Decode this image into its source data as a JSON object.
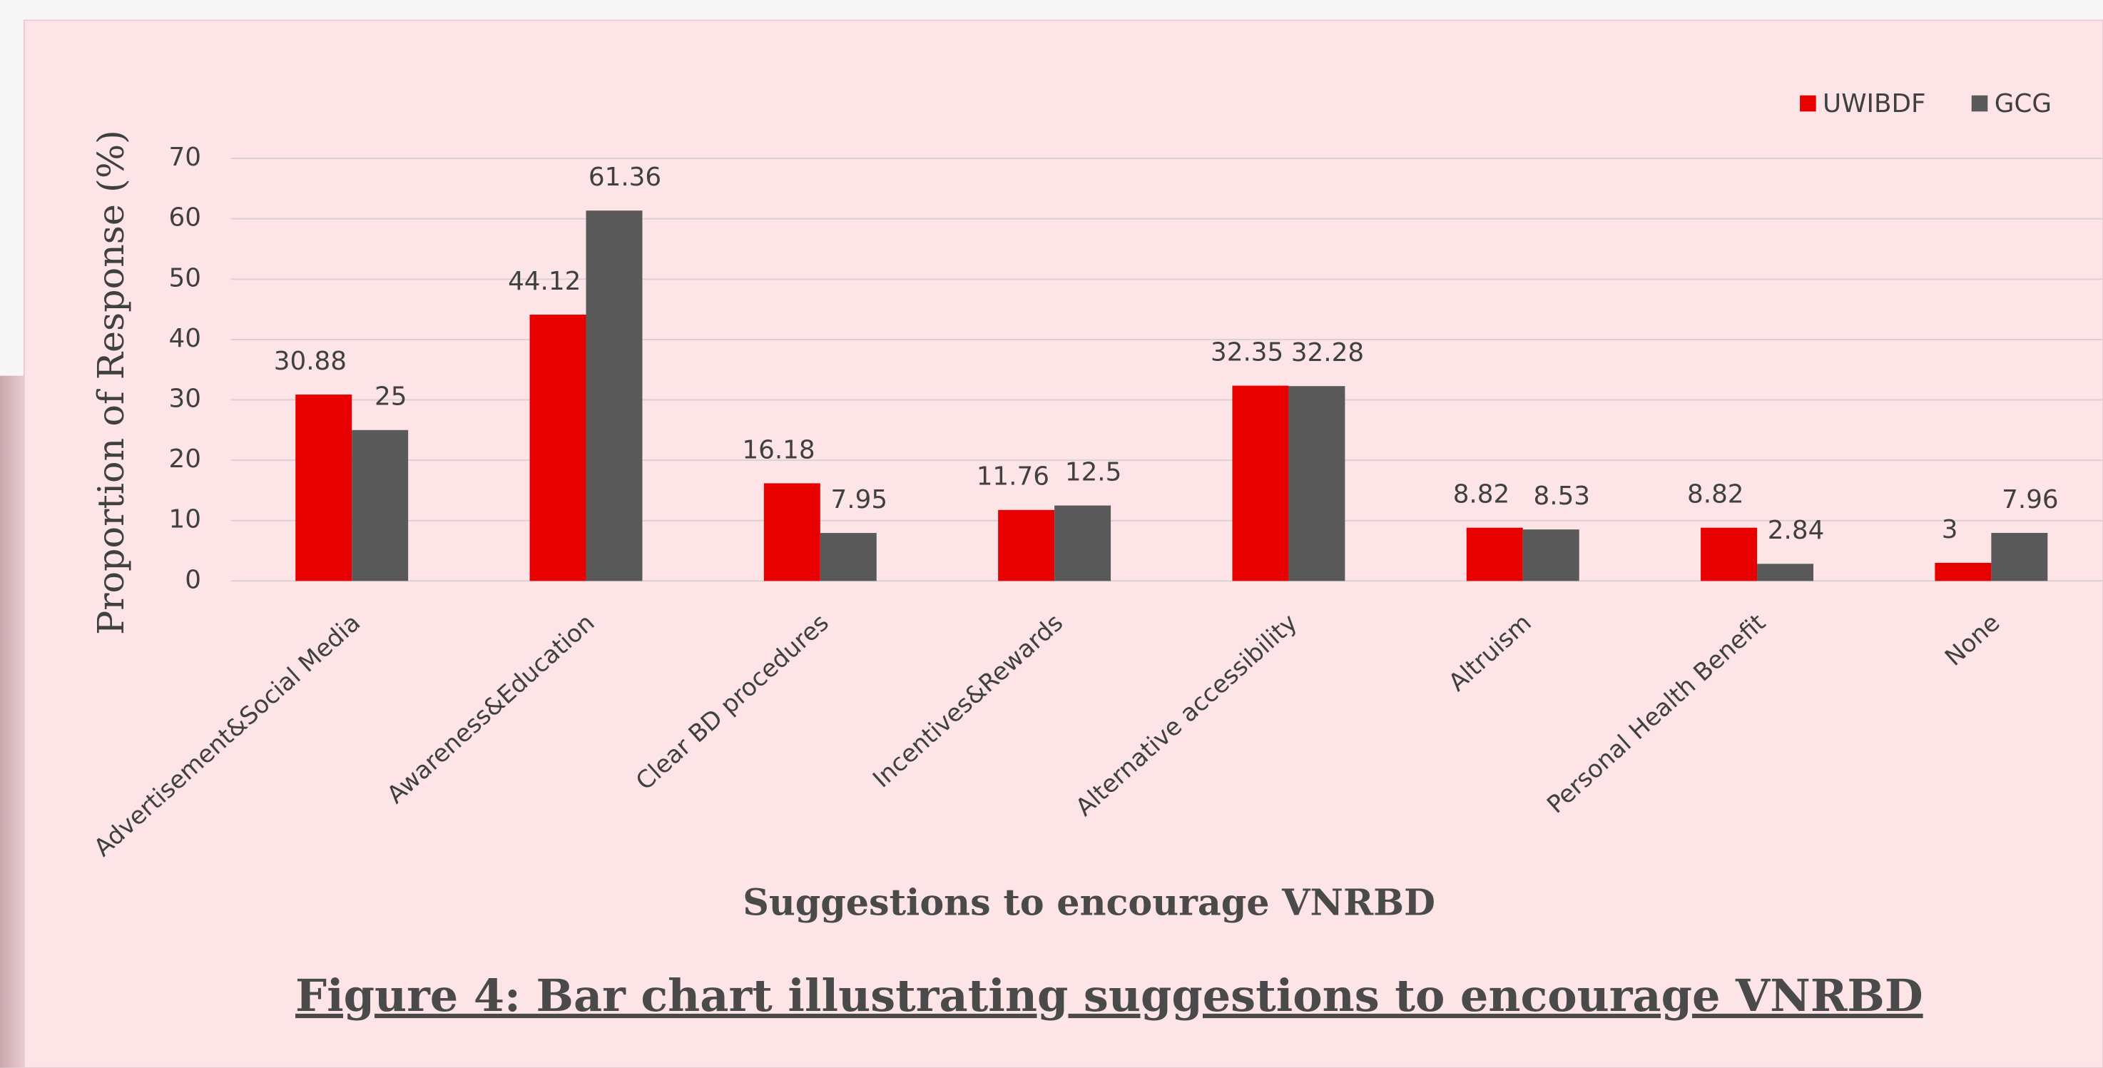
{
  "chart_data": {
    "type": "bar",
    "title": "Figure 4: Bar chart illustrating suggestions to encourage VNRBD",
    "x_label": "Suggestions to encourage VNRBD",
    "y_label": "Proportion of Response (%)",
    "categories": [
      "Advertisement&Social Media",
      "Awareness&Education",
      "Clear BD procedures",
      "Incentives&Rewards",
      "Alternative accessibility",
      "Altruism",
      "Personal Health Benefit",
      "None"
    ],
    "series": [
      {
        "name": "UWIBDF",
        "color": "#e80000",
        "values": [
          30.88,
          44.12,
          16.18,
          11.76,
          32.35,
          8.82,
          8.82,
          3
        ]
      },
      {
        "name": "GCG",
        "color": "#595959",
        "values": [
          25,
          61.36,
          7.95,
          12.5,
          32.28,
          8.53,
          2.84,
          7.96
        ]
      }
    ],
    "ylim": [
      0,
      70
    ],
    "yticks": [
      0,
      10,
      20,
      30,
      40,
      50,
      60,
      70
    ],
    "grid": true,
    "legend": "top-right"
  }
}
